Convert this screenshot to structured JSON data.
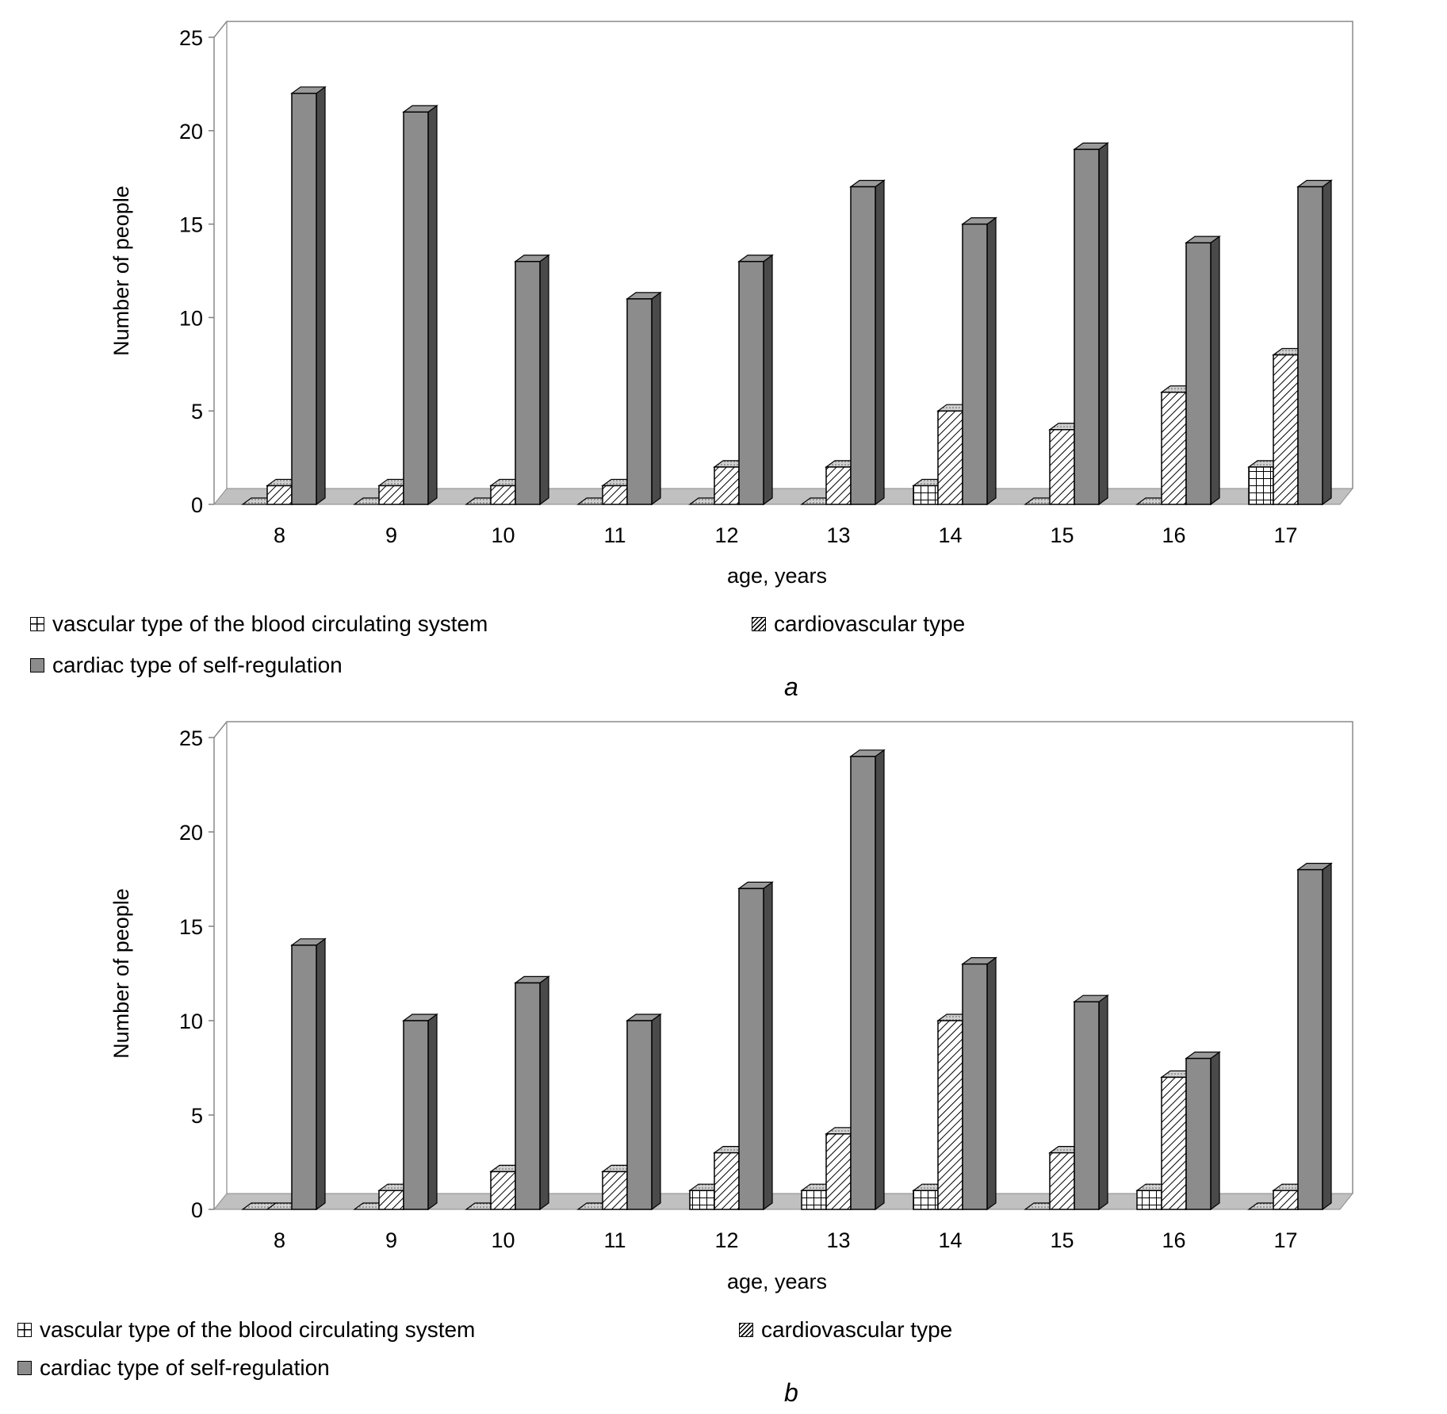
{
  "chart_data": [
    {
      "id": "a",
      "type": "bar",
      "panel_label": "a",
      "categories": [
        "8",
        "9",
        "10",
        "11",
        "12",
        "13",
        "14",
        "15",
        "16",
        "17"
      ],
      "series": [
        {
          "name": "vascular type of the blood circulating system",
          "pattern": "grid",
          "values": [
            0,
            0,
            0,
            0,
            0,
            0,
            1,
            0,
            0,
            2
          ]
        },
        {
          "name": "cardiovascular type",
          "pattern": "hatch",
          "values": [
            1,
            1,
            1,
            1,
            2,
            2,
            5,
            4,
            6,
            8
          ]
        },
        {
          "name": "cardiac type of self-regulation",
          "pattern": "solid",
          "values": [
            22,
            21,
            13,
            11,
            13,
            17,
            15,
            19,
            14,
            17
          ]
        }
      ],
      "xlabel": "age, years",
      "ylabel": "Number of people",
      "ylim": [
        0,
        25
      ],
      "yticks": [
        "0",
        "5",
        "10",
        "15",
        "20",
        "25"
      ],
      "legend": "bottom"
    },
    {
      "id": "b",
      "type": "bar",
      "panel_label": "b",
      "categories": [
        "8",
        "9",
        "10",
        "11",
        "12",
        "13",
        "14",
        "15",
        "16",
        "17"
      ],
      "series": [
        {
          "name": "vascular type of the blood circulating system",
          "pattern": "grid",
          "values": [
            0,
            0,
            0,
            0,
            1,
            1,
            1,
            0,
            1,
            0
          ]
        },
        {
          "name": "cardiovascular type",
          "pattern": "hatch",
          "values": [
            0,
            1,
            2,
            2,
            3,
            4,
            10,
            3,
            7,
            1
          ]
        },
        {
          "name": "cardiac type of self-regulation",
          "pattern": "solid",
          "values": [
            14,
            10,
            12,
            10,
            17,
            24,
            13,
            11,
            8,
            18
          ]
        }
      ],
      "xlabel": "age, years",
      "ylabel": "Number of people",
      "ylim": [
        0,
        25
      ],
      "yticks": [
        "0",
        "5",
        "10",
        "15",
        "20",
        "25"
      ],
      "legend": "bottom"
    }
  ],
  "colors": {
    "bar_front": "#8c8c8c",
    "bar_side": "#4a4a4a",
    "bar_top": "#b4b4b4",
    "floor": "#c0c0c0",
    "wall": "#8a8a8a"
  }
}
